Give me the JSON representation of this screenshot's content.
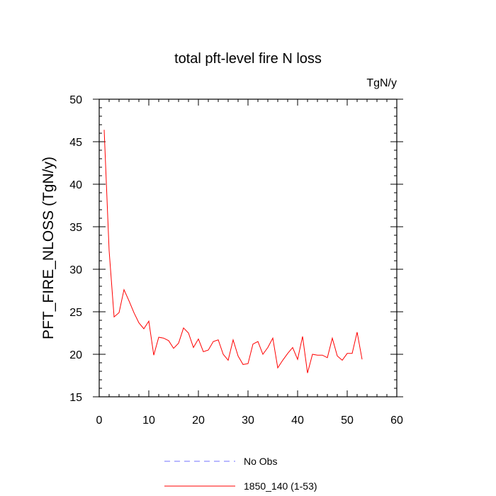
{
  "chart_data": {
    "type": "line",
    "title": "total pft-level fire N loss",
    "units_label": "TgN/y",
    "xlabel": "",
    "ylabel": "PFT_FIRE_NLOSS  (TgN/y)",
    "xlim": [
      0,
      60
    ],
    "ylim": [
      15,
      50
    ],
    "x_ticks": [
      0,
      10,
      20,
      30,
      40,
      50,
      60
    ],
    "y_ticks": [
      15,
      20,
      25,
      30,
      35,
      40,
      45,
      50
    ],
    "grid": false,
    "legend_position": "bottom",
    "series": [
      {
        "name": "No Obs",
        "color": "#0000ff",
        "style": "dashed",
        "x": [],
        "y": []
      },
      {
        "name": "1850_140 (1-53)",
        "color": "#ff0000",
        "style": "solid",
        "x": [
          1,
          2,
          3,
          4,
          5,
          6,
          7,
          8,
          9,
          10,
          11,
          12,
          13,
          14,
          15,
          16,
          17,
          18,
          19,
          20,
          21,
          22,
          23,
          24,
          25,
          26,
          27,
          28,
          29,
          30,
          31,
          32,
          33,
          34,
          35,
          36,
          37,
          38,
          39,
          40,
          41,
          42,
          43,
          44,
          45,
          46,
          47,
          48,
          49,
          50,
          51,
          52,
          53
        ],
        "y": [
          46.4,
          32.2,
          24.4,
          24.9,
          27.6,
          26.3,
          24.9,
          23.7,
          23.0,
          23.9,
          19.9,
          22.0,
          21.9,
          21.6,
          20.7,
          21.3,
          23.1,
          22.5,
          20.8,
          21.8,
          20.3,
          20.5,
          21.5,
          21.7,
          20.0,
          19.3,
          21.7,
          19.8,
          18.8,
          18.9,
          21.2,
          21.5,
          20.0,
          20.8,
          21.9,
          18.4,
          19.3,
          20.1,
          20.8,
          19.4,
          22.1,
          17.8,
          20.0,
          19.9,
          19.9,
          19.6,
          21.9,
          19.8,
          19.3,
          20.1,
          20.1,
          22.6,
          19.4
        ]
      }
    ]
  }
}
